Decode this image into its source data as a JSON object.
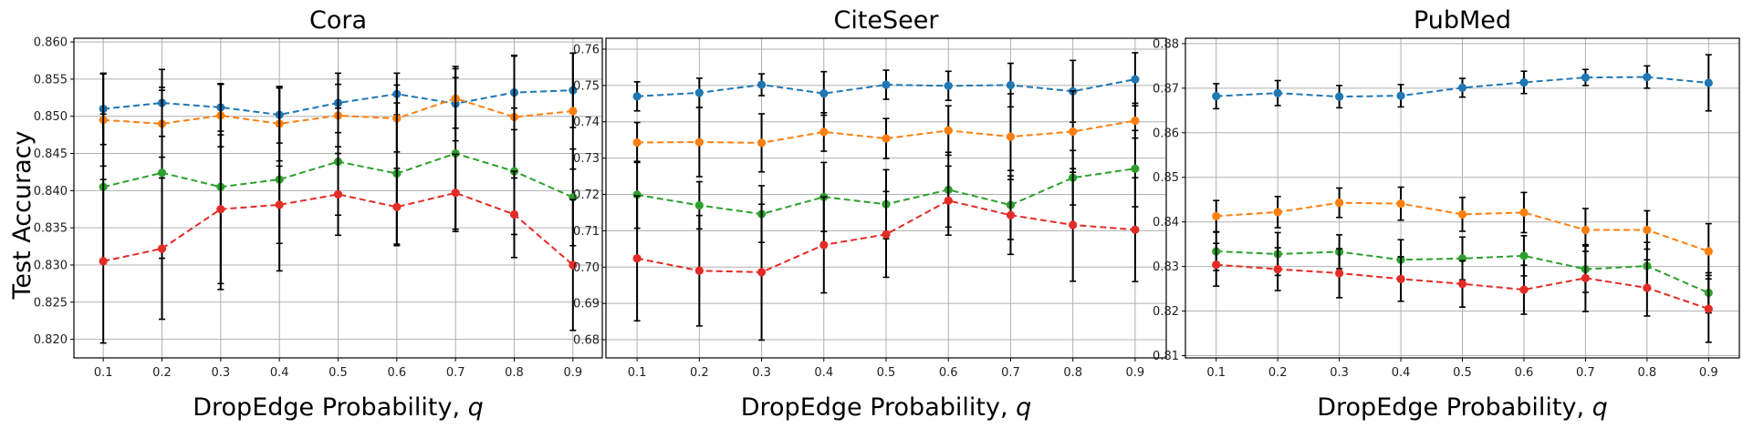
{
  "figure": {
    "ylabel": "Test Accuracy",
    "xlabel_text": "DropEdge Probability, ",
    "xlabel_var": "q"
  },
  "chart_data": [
    {
      "type": "line",
      "title": "Cora",
      "x": [
        0.1,
        0.2,
        0.3,
        0.4,
        0.5,
        0.6,
        0.7,
        0.8,
        0.9
      ],
      "x_ticks": [
        "0.1",
        "0.2",
        "0.3",
        "0.4",
        "0.5",
        "0.6",
        "0.7",
        "0.8",
        "0.9"
      ],
      "ylim": [
        0.8175,
        0.8605
      ],
      "y_ticks": [
        "0.820",
        "0.825",
        "0.830",
        "0.835",
        "0.840",
        "0.845",
        "0.850",
        "0.855",
        "0.860"
      ],
      "grid": true,
      "series": [
        {
          "color": "#1f77b4",
          "values": [
            0.851,
            0.8518,
            0.8512,
            0.8502,
            0.8518,
            0.853,
            0.8517,
            0.8532,
            0.8535
          ],
          "errors": [
            0.0048,
            0.0045,
            0.0032,
            0.0038,
            0.004,
            0.0028,
            0.005,
            0.005,
            0.005
          ]
        },
        {
          "color": "#ff7f0e",
          "values": [
            0.8495,
            0.849,
            0.8501,
            0.849,
            0.8501,
            0.8497,
            0.8524,
            0.8499,
            0.8507
          ],
          "errors": [
            0.0062,
            0.0045,
            0.0042,
            0.005,
            0.0042,
            0.0045,
            0.004,
            0.0082,
            0.0078
          ]
        },
        {
          "color": "#2ca02c",
          "values": [
            0.8405,
            0.8424,
            0.8405,
            0.8415,
            0.8439,
            0.8423,
            0.845,
            0.8426,
            0.8391
          ],
          "errors": [
            0.0098,
            0.0115,
            0.0138,
            0.0123,
            0.0072,
            0.0095,
            0.0102,
            0.0085,
            0.0065
          ]
        },
        {
          "color": "#e42b25",
          "values": [
            0.8305,
            0.8322,
            0.8375,
            0.8381,
            0.8395,
            0.8378,
            0.8397,
            0.8368,
            0.83
          ],
          "errors": [
            0.011,
            0.0095,
            0.01,
            0.0052,
            0.0055,
            0.0052,
            0.0052,
            0.0058,
            0.0088
          ]
        }
      ]
    },
    {
      "type": "line",
      "title": "CiteSeer",
      "x": [
        0.1,
        0.2,
        0.3,
        0.4,
        0.5,
        0.6,
        0.7,
        0.8,
        0.9
      ],
      "x_ticks": [
        "0.1",
        "0.2",
        "0.3",
        "0.4",
        "0.5",
        "0.6",
        "0.7",
        "0.8",
        "0.9"
      ],
      "ylim": [
        0.675,
        0.763
      ],
      "y_ticks": [
        "0.68",
        "0.69",
        "0.70",
        "0.71",
        "0.72",
        "0.73",
        "0.74",
        "0.75",
        "0.76"
      ],
      "grid": true,
      "series": [
        {
          "color": "#1f77b4",
          "values": [
            0.747,
            0.748,
            0.7502,
            0.7478,
            0.7502,
            0.7499,
            0.7501,
            0.7484,
            0.7517
          ],
          "errors": [
            0.004,
            0.004,
            0.003,
            0.006,
            0.004,
            0.004,
            0.006,
            0.0085,
            0.0073
          ]
        },
        {
          "color": "#ff7f0e",
          "values": [
            0.7343,
            0.7344,
            0.7342,
            0.7372,
            0.7354,
            0.7376,
            0.7359,
            0.7373,
            0.7403
          ],
          "errors": [
            0.0055,
            0.0095,
            0.008,
            0.0053,
            0.0055,
            0.0068,
            0.0118,
            0.0112,
            0.0048
          ]
        },
        {
          "color": "#2ca02c",
          "values": [
            0.7199,
            0.717,
            0.7146,
            0.7193,
            0.7173,
            0.7213,
            0.7171,
            0.7246,
            0.7271
          ],
          "errors": [
            0.0092,
            0.0065,
            0.0078,
            0.0095,
            0.0095,
            0.0103,
            0.0095,
            0.0075,
            0.0105
          ]
        },
        {
          "color": "#e42b25",
          "values": [
            0.7024,
            0.699,
            0.6986,
            0.7061,
            0.709,
            0.7183,
            0.7143,
            0.7116,
            0.7103
          ],
          "errors": [
            0.0172,
            0.0152,
            0.0187,
            0.0132,
            0.0118,
            0.0095,
            0.0108,
            0.0155,
            0.0143
          ]
        }
      ]
    },
    {
      "type": "line",
      "title": "PubMed",
      "x": [
        0.1,
        0.2,
        0.3,
        0.4,
        0.5,
        0.6,
        0.7,
        0.8,
        0.9
      ],
      "x_ticks": [
        "0.1",
        "0.2",
        "0.3",
        "0.4",
        "0.5",
        "0.6",
        "0.7",
        "0.8",
        "0.9"
      ],
      "ylim": [
        0.8095,
        0.8812
      ],
      "y_ticks": [
        "0.81",
        "0.82",
        "0.83",
        "0.84",
        "0.85",
        "0.86",
        "0.87",
        "0.88"
      ],
      "grid": true,
      "series": [
        {
          "color": "#1f77b4",
          "values": [
            0.8682,
            0.8689,
            0.8681,
            0.8683,
            0.8701,
            0.8713,
            0.8724,
            0.8725,
            0.8712
          ],
          "errors": [
            0.0028,
            0.0028,
            0.0025,
            0.0025,
            0.0021,
            0.0025,
            0.0018,
            0.0025,
            0.0063
          ]
        },
        {
          "color": "#ff7f0e",
          "values": [
            0.8413,
            0.8422,
            0.8443,
            0.8441,
            0.8417,
            0.8421,
            0.8382,
            0.8382,
            0.8334
          ],
          "errors": [
            0.0035,
            0.0035,
            0.0033,
            0.0037,
            0.0038,
            0.0045,
            0.0048,
            0.0043,
            0.0062
          ]
        },
        {
          "color": "#2ca02c",
          "values": [
            0.8334,
            0.8328,
            0.8333,
            0.8315,
            0.8318,
            0.8324,
            0.8294,
            0.8301,
            0.8241
          ],
          "errors": [
            0.0043,
            0.0048,
            0.0038,
            0.0045,
            0.0048,
            0.0045,
            0.0052,
            0.0053,
            0.0045
          ]
        },
        {
          "color": "#e42b25",
          "values": [
            0.8304,
            0.8294,
            0.8285,
            0.8272,
            0.8261,
            0.8248,
            0.8274,
            0.8252,
            0.8205
          ],
          "errors": [
            0.0048,
            0.0048,
            0.0055,
            0.005,
            0.0052,
            0.0055,
            0.0075,
            0.0063,
            0.0075
          ]
        }
      ]
    }
  ]
}
